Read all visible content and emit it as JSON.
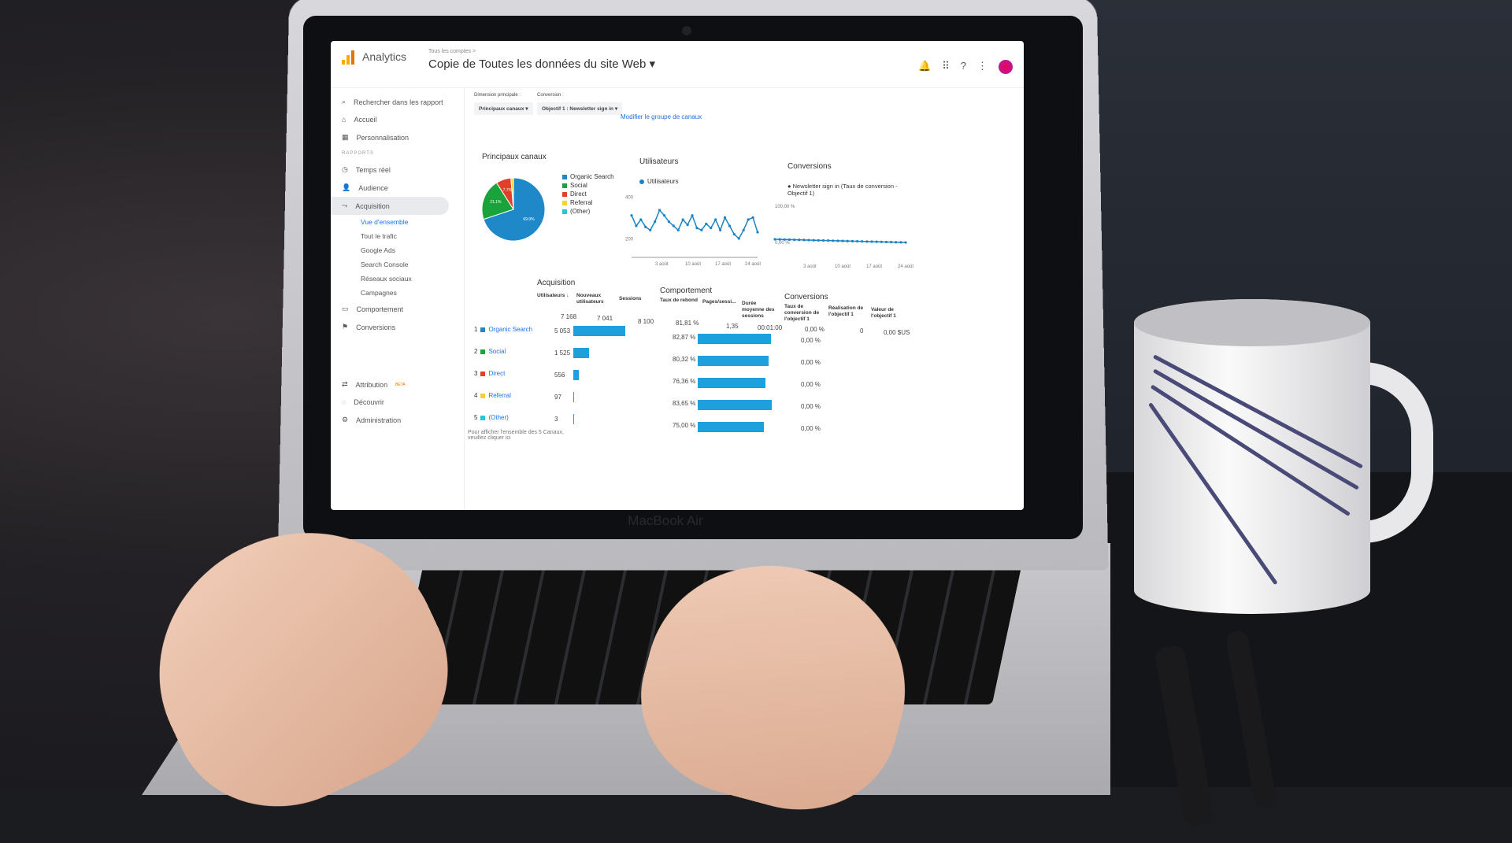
{
  "device": {
    "brand": "MacBook Air"
  },
  "header": {
    "app": "Analytics",
    "breadcrumb": "Tous les comptes >",
    "property": "Copie de Toutes les données du site Web ▾"
  },
  "search": {
    "placeholder": "Rechercher dans les rapport"
  },
  "sidebar": {
    "items": [
      {
        "label": "Accueil",
        "icon": "home-icon"
      },
      {
        "label": "Personnalisation",
        "icon": "dashboard-icon"
      }
    ],
    "section": "RAPPORTS",
    "reports": [
      {
        "label": "Temps réel",
        "icon": "clock-icon"
      },
      {
        "label": "Audience",
        "icon": "person-icon"
      },
      {
        "label": "Acquisition",
        "icon": "acquisition-icon"
      }
    ],
    "acquisition_sub": [
      "Vue d'ensemble",
      "Tout le trafic",
      "Google Ads",
      "Search Console",
      "Réseaux sociaux",
      "Campagnes"
    ],
    "more": [
      {
        "label": "Comportement",
        "icon": "behavior-icon"
      },
      {
        "label": "Conversions",
        "icon": "flag-icon"
      }
    ],
    "bottom": [
      {
        "label": "Attribution",
        "badge": "BETA",
        "icon": "attribution-icon"
      },
      {
        "label": "Découvrir",
        "icon": "lightbulb-icon"
      },
      {
        "label": "Administration",
        "icon": "gear-icon"
      }
    ]
  },
  "controls": {
    "dimension_label": "Dimension principale :",
    "dimension_value": "Principaux canaux ▾",
    "conversion_label": "Conversion :",
    "conversion_value": "Objectif 1 : Newsletter sign in ▾",
    "modify_link": "Modifier le groupe de canaux"
  },
  "pie": {
    "title": "Principaux canaux",
    "slices": [
      {
        "name": "Organic Search",
        "value": 69.9,
        "label": "69.9%",
        "color": "#1e88c8"
      },
      {
        "name": "Social",
        "value": 21.1,
        "label": "21.1%",
        "color": "#1aa33a"
      },
      {
        "name": "Direct",
        "value": 7.7,
        "label": "7.7%",
        "color": "#e0402a"
      },
      {
        "name": "Referral",
        "value": 1.2,
        "label": "",
        "color": "#f5d132"
      },
      {
        "name": "(Other)",
        "value": 0.1,
        "label": "",
        "color": "#2ac4d4"
      }
    ]
  },
  "users_chart": {
    "title": "Utilisateurs",
    "legend": "Utilisateurs",
    "yticks": [
      "400",
      "200"
    ],
    "ylim": [
      150,
      450
    ],
    "xticks": [
      "3 août",
      "10 août",
      "17 août",
      "24 août"
    ],
    "values": [
      320,
      270,
      300,
      265,
      250,
      290,
      345,
      320,
      290,
      270,
      250,
      300,
      275,
      320,
      260,
      250,
      280,
      260,
      300,
      250,
      310,
      270,
      230,
      210,
      250,
      300,
      310,
      240
    ],
    "color": "#1a83c4"
  },
  "conv_chart": {
    "title": "Conversions",
    "legend": "Newsletter sign in (Taux de conversion - Objectif 1)",
    "yticks": [
      "100,00 %",
      "0,00 %"
    ],
    "xticks": [
      "3 août",
      "10 août",
      "17 août",
      "24 août"
    ]
  },
  "table": {
    "groups": [
      "Acquisition",
      "Comportement",
      "Conversions"
    ],
    "headers": [
      "Utilisateurs ↓",
      "Nouveaux utilisateurs",
      "Sessions",
      "Taux de rebond",
      "Pages/sessi...",
      "Durée moyenne des sessions",
      "Taux de conversion de l'objectif 1",
      "Réalisation de l'objectif 1",
      "Valeur de l'objectif 1"
    ],
    "totals": [
      "7 168",
      "7 041",
      "8 100",
      "81,81 %",
      "1,35",
      "00:01:00",
      "0,00 %",
      "0",
      "0,00 $US"
    ],
    "rows": [
      {
        "rank": "1",
        "name": "Organic Search",
        "color": "#1e88c8",
        "users": "5 053",
        "users_val": 5053,
        "bounce": "82,87 %",
        "bounce_val": 82.87,
        "conv": "0,00 %"
      },
      {
        "rank": "2",
        "name": "Social",
        "color": "#1aa33a",
        "users": "1 525",
        "users_val": 1525,
        "bounce": "80,32 %",
        "bounce_val": 80.32,
        "conv": "0,00 %"
      },
      {
        "rank": "3",
        "name": "Direct",
        "color": "#e0402a",
        "users": "556",
        "users_val": 556,
        "bounce": "76,36 %",
        "bounce_val": 76.36,
        "conv": "0,00 %"
      },
      {
        "rank": "4",
        "name": "Referral",
        "color": "#f5d132",
        "users": "97",
        "users_val": 97,
        "bounce": "83,65 %",
        "bounce_val": 83.65,
        "conv": "0,00 %"
      },
      {
        "rank": "5",
        "name": "(Other)",
        "color": "#2ac4d4",
        "users": "3",
        "users_val": 3,
        "bounce": "75,00 %",
        "bounce_val": 75.0,
        "conv": "0,00 %"
      }
    ],
    "footer": "Pour afficher l'ensemble des 5 Canaux, veuillez cliquer ici"
  }
}
